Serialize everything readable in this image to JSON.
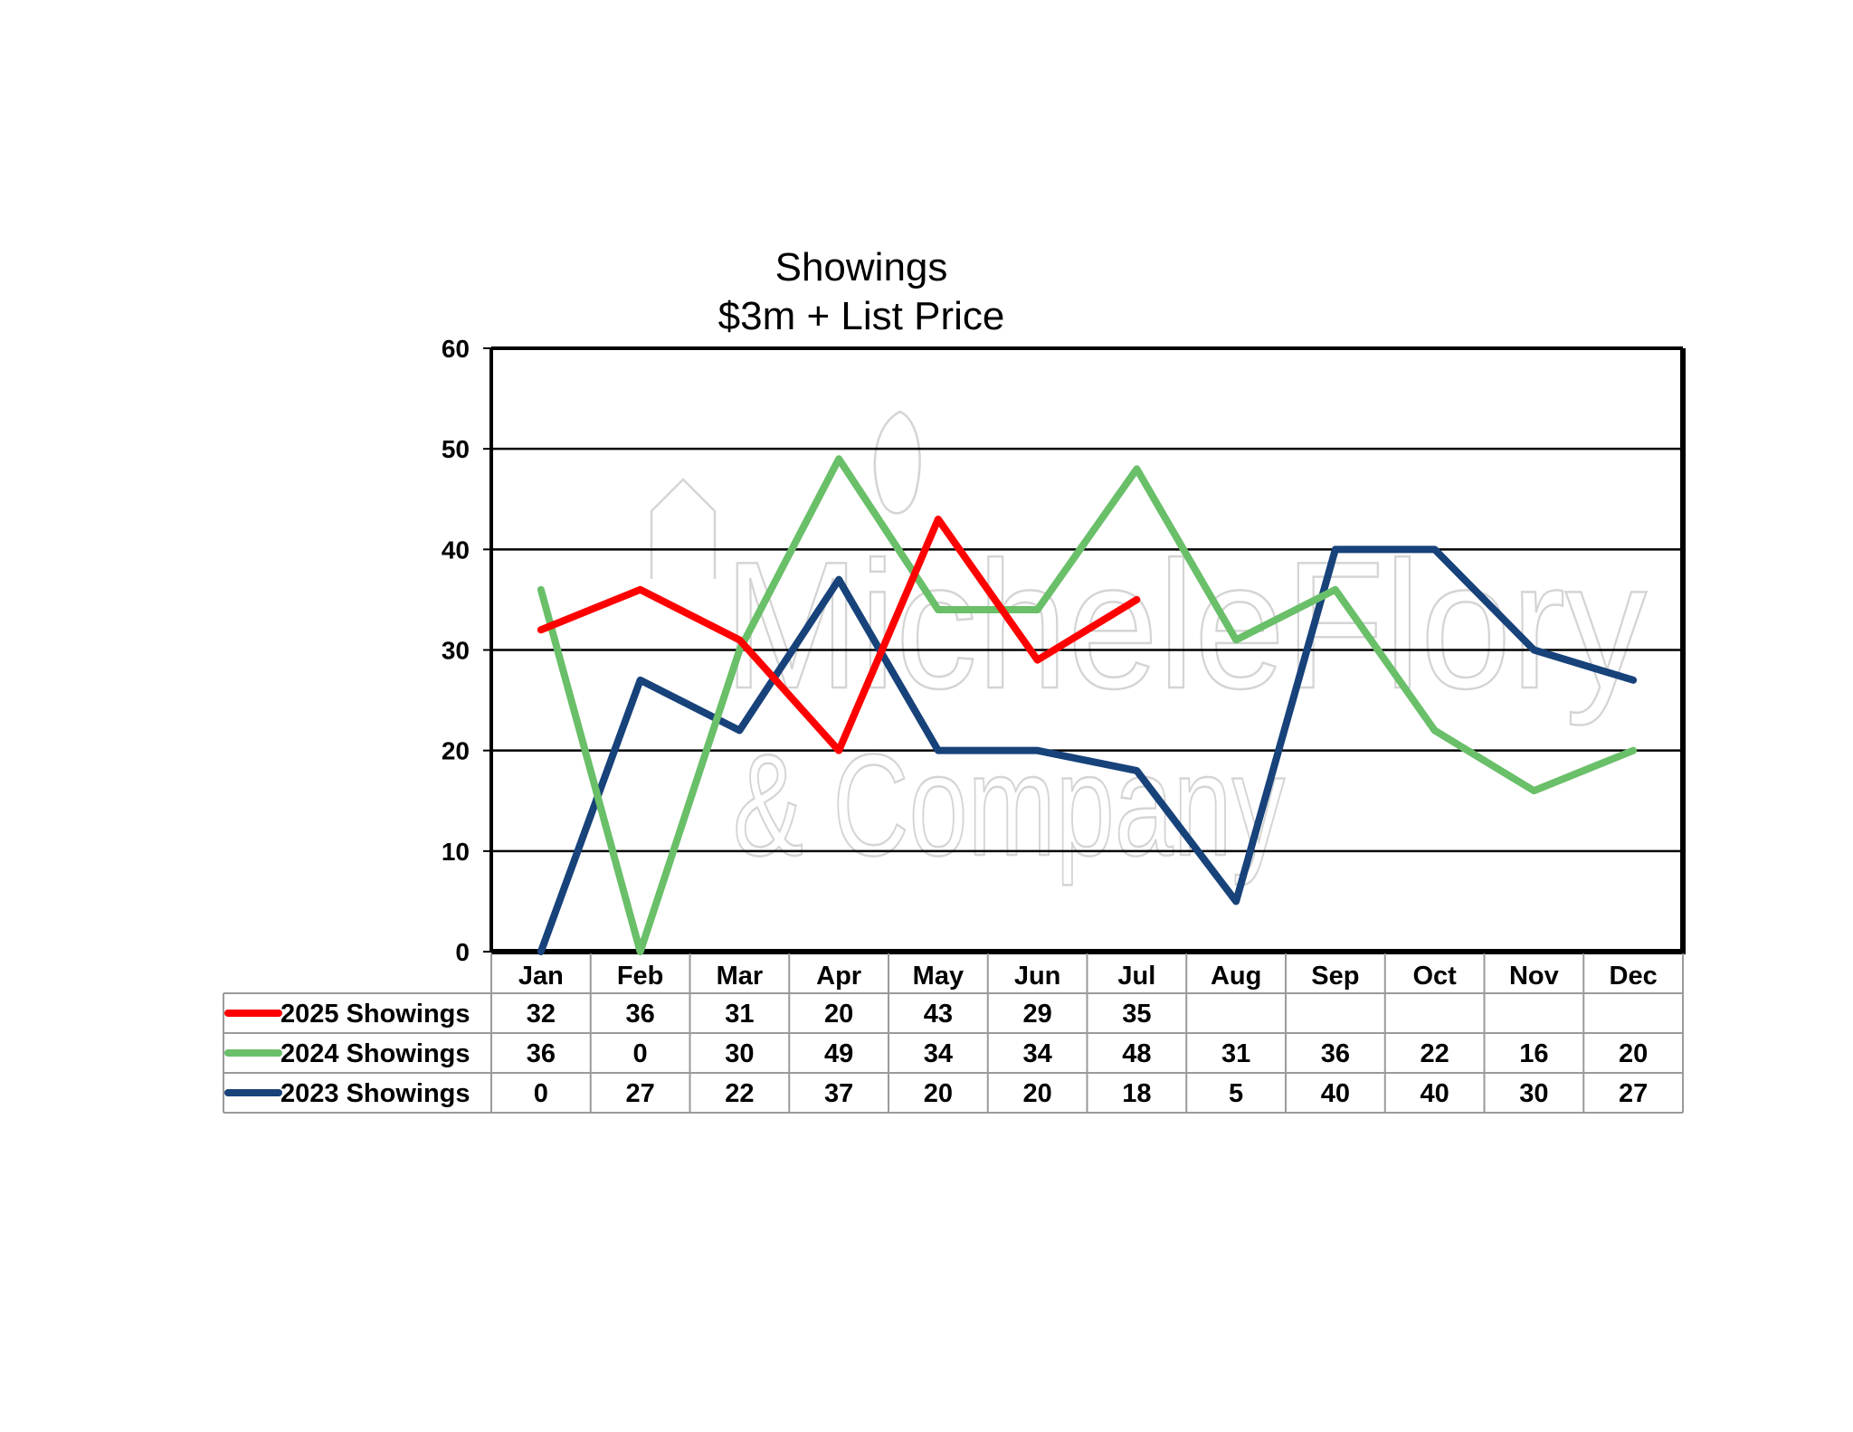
{
  "chart_data": {
    "type": "line",
    "title": "Showings",
    "subtitle": "$3m + List Price",
    "categories": [
      "Jan",
      "Feb",
      "Mar",
      "Apr",
      "May",
      "Jun",
      "Jul",
      "Aug",
      "Sep",
      "Oct",
      "Nov",
      "Dec"
    ],
    "ylim": [
      0,
      60
    ],
    "yticks": [
      0,
      10,
      20,
      30,
      40,
      50,
      60
    ],
    "grid": true,
    "legend": "data-table-below",
    "series": [
      {
        "name": "2025 Showings",
        "color": "#ff0000",
        "values": [
          32,
          36,
          31,
          20,
          43,
          29,
          35,
          null,
          null,
          null,
          null,
          null
        ]
      },
      {
        "name": "2024 Showings",
        "color": "#6abf69",
        "values": [
          36,
          0,
          30,
          49,
          34,
          34,
          48,
          31,
          36,
          22,
          16,
          20
        ]
      },
      {
        "name": "2023 Showings",
        "color": "#17427a",
        "values": [
          0,
          27,
          22,
          37,
          20,
          20,
          18,
          5,
          40,
          40,
          30,
          27
        ]
      }
    ]
  },
  "watermark": {
    "lines": [
      "MicheleFlory",
      "& Company"
    ]
  }
}
